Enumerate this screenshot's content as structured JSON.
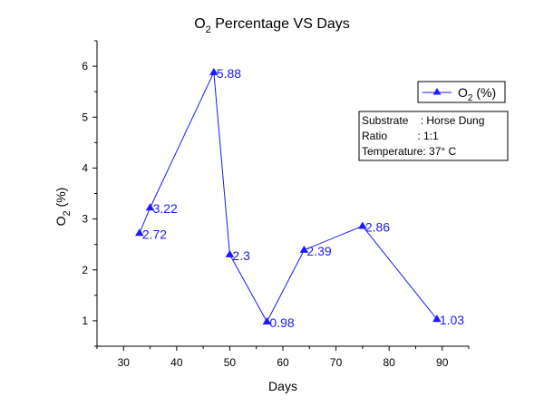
{
  "chart_data": {
    "type": "line",
    "title": "O",
    "title_sub": "2",
    "title_rest": " Percentage VS Days",
    "xlabel": "Days",
    "ylabel": "O",
    "ylabel_sub": "2",
    "ylabel_rest": " (%)",
    "xlim": [
      25,
      95
    ],
    "ylim": [
      0.5,
      6.5
    ],
    "x_ticks": [
      "30",
      "40",
      "50",
      "60",
      "70",
      "80",
      "90"
    ],
    "y_ticks": [
      "1",
      "2",
      "3",
      "4",
      "5",
      "6"
    ],
    "grid": false,
    "series": [
      {
        "name": "O",
        "name_sub": "2",
        "name_rest": " (%)",
        "x": [
          33,
          35,
          47,
          50,
          57,
          64,
          75,
          89
        ],
        "y": [
          2.72,
          3.22,
          5.88,
          2.3,
          0.98,
          2.39,
          2.86,
          1.03
        ],
        "labels": [
          "2.72",
          "3.22",
          "5.88",
          "2.3",
          "0.98",
          "2.39",
          "2.86",
          "1.03"
        ],
        "color": "#1a1aff",
        "marker": "triangle"
      }
    ],
    "legend_position": "top-right",
    "info_box": [
      "Substrate    : Horse Dung",
      "Ratio          : 1:1",
      "Temperature: 37° C"
    ]
  }
}
